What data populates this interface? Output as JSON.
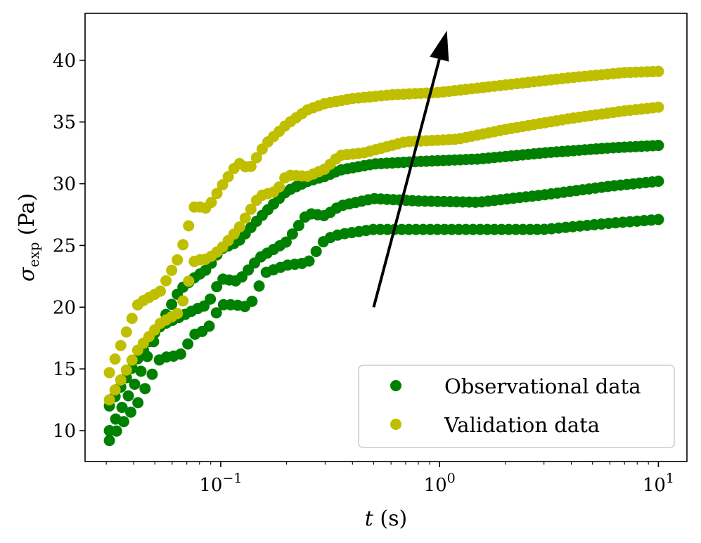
{
  "chart_data": {
    "type": "scatter",
    "x_scale": "log",
    "xlim": [
      0.024,
      13.5
    ],
    "ylim": [
      7.5,
      43.8
    ],
    "grid": false,
    "legend_position": "lower-right",
    "xlabel": {
      "var": "t",
      "rest": " (s)"
    },
    "ylabel": {
      "var": "σ",
      "sub": "exp",
      "rest": " (Pa)"
    },
    "x_ticks": [
      {
        "value": 0.1,
        "base": "10",
        "exp": "−1"
      },
      {
        "value": 1,
        "base": "10",
        "exp": "0"
      },
      {
        "value": 10,
        "base": "10",
        "exp": "1"
      }
    ],
    "y_ticks": [
      10,
      15,
      20,
      25,
      30,
      35,
      40
    ],
    "arrow": {
      "from": [
        0.5,
        20.0
      ],
      "to": [
        1.08,
        42.4
      ]
    },
    "series": [
      {
        "name": "Observational data",
        "color": "#008000",
        "curves": [
          {
            "anchors": [
              [
                0.031,
                9.2
              ],
              [
                0.042,
                12.3
              ],
              [
                0.053,
                15.9
              ],
              [
                0.065,
                16.1
              ],
              [
                0.076,
                17.8
              ],
              [
                0.087,
                18.2
              ],
              [
                0.1,
                20.2
              ],
              [
                0.115,
                20.2
              ],
              [
                0.135,
                20.0
              ],
              [
                0.16,
                22.8
              ],
              [
                0.2,
                23.4
              ],
              [
                0.25,
                23.6
              ],
              [
                0.3,
                25.5
              ],
              [
                0.35,
                25.9
              ],
              [
                0.5,
                26.3
              ],
              [
                0.8,
                26.3
              ],
              [
                1.5,
                26.3
              ],
              [
                3,
                26.3
              ],
              [
                6,
                26.8
              ],
              [
                10,
                27.1
              ]
            ],
            "count": 78
          },
          {
            "anchors": [
              [
                0.031,
                10.0
              ],
              [
                0.042,
                14.3
              ],
              [
                0.053,
                18.5
              ],
              [
                0.065,
                19.2
              ],
              [
                0.076,
                19.8
              ],
              [
                0.087,
                20.2
              ],
              [
                0.1,
                22.3
              ],
              [
                0.12,
                22.1
              ],
              [
                0.15,
                24.0
              ],
              [
                0.2,
                25.3
              ],
              [
                0.25,
                27.6
              ],
              [
                0.3,
                27.4
              ],
              [
                0.35,
                28.2
              ],
              [
                0.5,
                28.8
              ],
              [
                0.8,
                28.6
              ],
              [
                1.5,
                28.5
              ],
              [
                3,
                29.1
              ],
              [
                6,
                29.8
              ],
              [
                10,
                30.2
              ]
            ],
            "count": 88
          },
          {
            "anchors": [
              [
                0.031,
                12.0
              ],
              [
                0.042,
                15.9
              ],
              [
                0.053,
                18.6
              ],
              [
                0.065,
                21.4
              ],
              [
                0.076,
                22.4
              ],
              [
                0.087,
                23.1
              ],
              [
                0.1,
                24.7
              ],
              [
                0.12,
                25.3
              ],
              [
                0.15,
                27.2
              ],
              [
                0.18,
                28.6
              ],
              [
                0.2,
                29.4
              ],
              [
                0.25,
                30.2
              ],
              [
                0.3,
                30.6
              ],
              [
                0.35,
                31.1
              ],
              [
                0.5,
                31.6
              ],
              [
                0.8,
                31.8
              ],
              [
                1.5,
                32.0
              ],
              [
                3,
                32.5
              ],
              [
                6,
                32.9
              ],
              [
                10,
                33.1
              ]
            ],
            "count": 98
          }
        ]
      },
      {
        "name": "Validation data",
        "color": "#bfbf00",
        "curves": [
          {
            "anchors": [
              [
                0.031,
                12.5
              ],
              [
                0.042,
                16.6
              ],
              [
                0.053,
                18.7
              ],
              [
                0.065,
                19.6
              ],
              [
                0.076,
                23.8
              ],
              [
                0.087,
                23.9
              ],
              [
                0.1,
                24.7
              ],
              [
                0.12,
                26.3
              ],
              [
                0.15,
                29.0
              ],
              [
                0.18,
                29.4
              ],
              [
                0.2,
                30.7
              ],
              [
                0.25,
                30.6
              ],
              [
                0.3,
                31.2
              ],
              [
                0.35,
                32.3
              ],
              [
                0.45,
                32.5
              ],
              [
                0.7,
                33.4
              ],
              [
                1.2,
                33.6
              ],
              [
                2,
                34.4
              ],
              [
                4,
                35.3
              ],
              [
                7,
                35.9
              ],
              [
                10,
                36.2
              ]
            ],
            "count": 98
          },
          {
            "anchors": [
              [
                0.031,
                14.7
              ],
              [
                0.042,
                20.3
              ],
              [
                0.053,
                21.3
              ],
              [
                0.065,
                24.2
              ],
              [
                0.076,
                28.2
              ],
              [
                0.087,
                28.0
              ],
              [
                0.1,
                29.7
              ],
              [
                0.12,
                31.7
              ],
              [
                0.135,
                31.2
              ],
              [
                0.16,
                33.2
              ],
              [
                0.2,
                34.8
              ],
              [
                0.25,
                36.0
              ],
              [
                0.3,
                36.5
              ],
              [
                0.4,
                36.9
              ],
              [
                0.6,
                37.2
              ],
              [
                1.0,
                37.4
              ],
              [
                2,
                38.0
              ],
              [
                4,
                38.6
              ],
              [
                7,
                39.0
              ],
              [
                10,
                39.1
              ]
            ],
            "count": 98
          }
        ]
      }
    ]
  }
}
